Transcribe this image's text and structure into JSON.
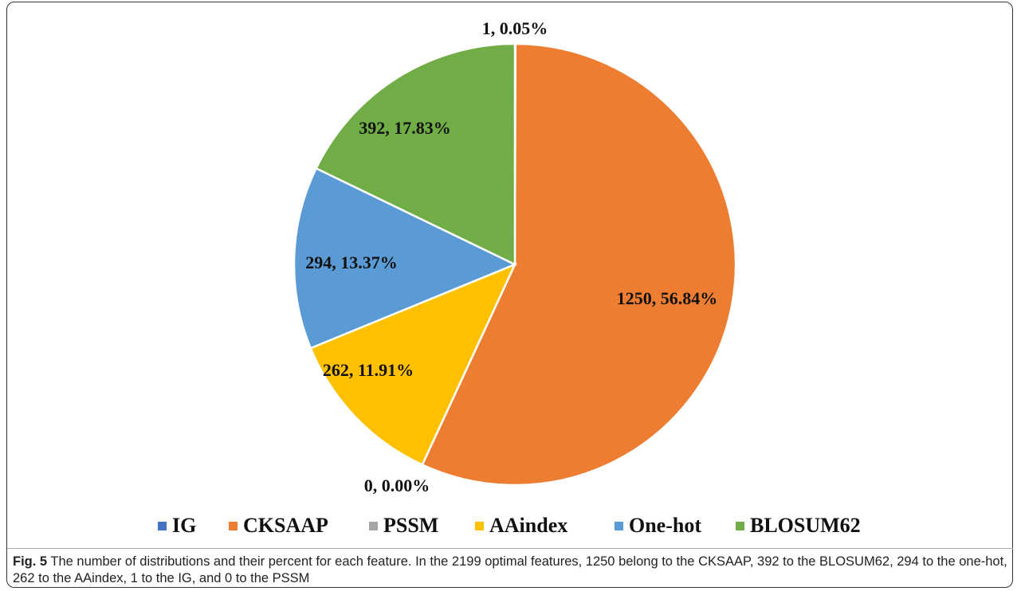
{
  "chart_data": {
    "type": "pie",
    "categories": [
      "IG",
      "CKSAAP",
      "PSSM",
      "AAindex",
      "One-hot",
      "BLOSUM62"
    ],
    "values": [
      1,
      1250,
      0,
      262,
      294,
      392
    ],
    "value_labels": [
      "1, 0.05%",
      "1250, 56.84%",
      "0, 0.00%",
      "262, 11.91%",
      "294, 13.37%",
      "392, 17.83%"
    ],
    "colors": [
      "#4472c4",
      "#ed7d31",
      "#a5a5a5",
      "#ffc000",
      "#5b9bd5",
      "#70ad47"
    ],
    "legend": "bottom"
  },
  "caption": {
    "label": "Fig. 5",
    "text": "The number of distributions and their percent for each feature. In the 2199 optimal features, 1250 belong to the CKSAAP, 392 to the BLOSUM62, 294 to the one-hot, 262 to the AAindex, 1 to the IG, and 0 to the PSSM"
  }
}
